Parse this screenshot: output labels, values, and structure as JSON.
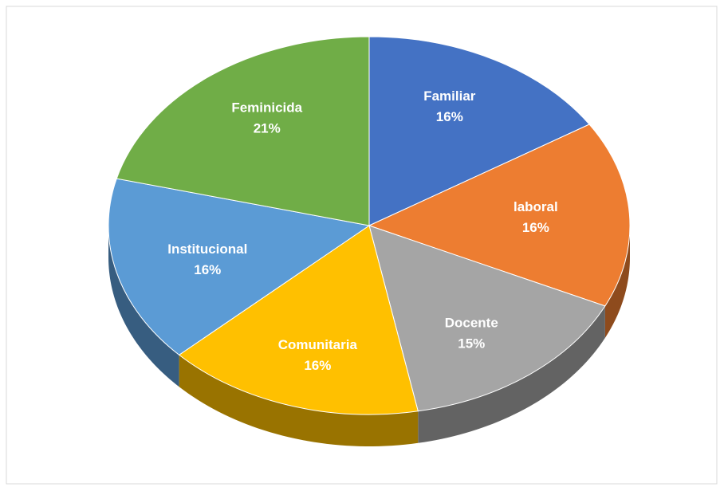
{
  "chart_data": {
    "type": "pie",
    "categories": [
      "Familiar",
      "laboral",
      "Docente",
      "Comunitaria",
      "Institucional",
      "Feminicida"
    ],
    "values": [
      16,
      16,
      15,
      16,
      16,
      21
    ],
    "value_labels": [
      "16%",
      "16%",
      "15%",
      "16%",
      "16%",
      "21%"
    ],
    "colors": [
      "#4472c4",
      "#ed7d31",
      "#a5a5a5",
      "#ffc000",
      "#5b9bd5",
      "#70ad47"
    ]
  }
}
